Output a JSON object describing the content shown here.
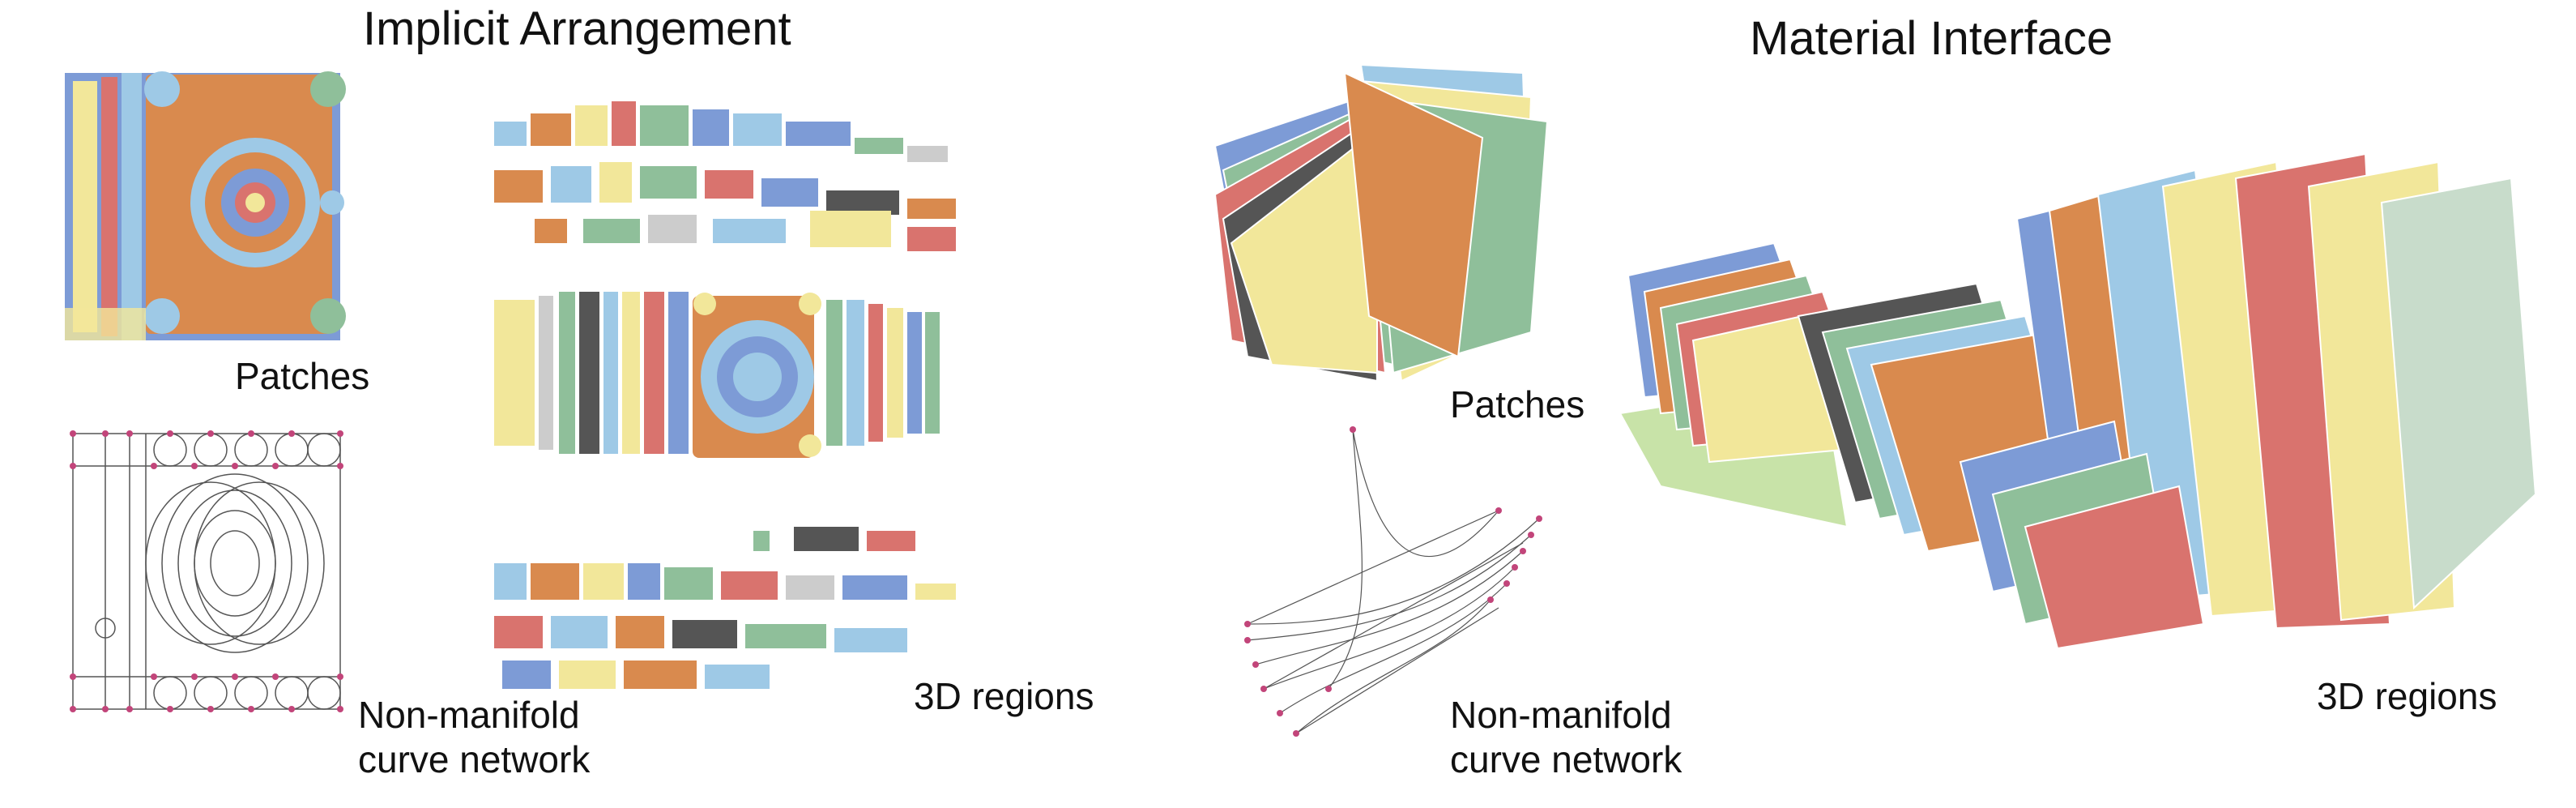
{
  "figure": {
    "left": {
      "title": "Implicit Arrangement",
      "labels": {
        "patches": "Patches",
        "curve_network_line1": "Non-manifold",
        "curve_network_line2": "curve network",
        "regions": "3D regions"
      }
    },
    "right": {
      "title": "Material Interface",
      "labels": {
        "patches": "Patches",
        "curve_network_line1": "Non-manifold",
        "curve_network_line2": "curve network",
        "regions": "3D regions"
      }
    }
  },
  "colors": {
    "orange": "#d98a4e",
    "blue": "#7d9bd6",
    "yellow": "#f2e79a",
    "light_blue": "#9ec9e6",
    "green": "#8fbf9a",
    "red": "#d9736e",
    "curve_pink": "#c2457a",
    "curve_gray": "#555555"
  }
}
